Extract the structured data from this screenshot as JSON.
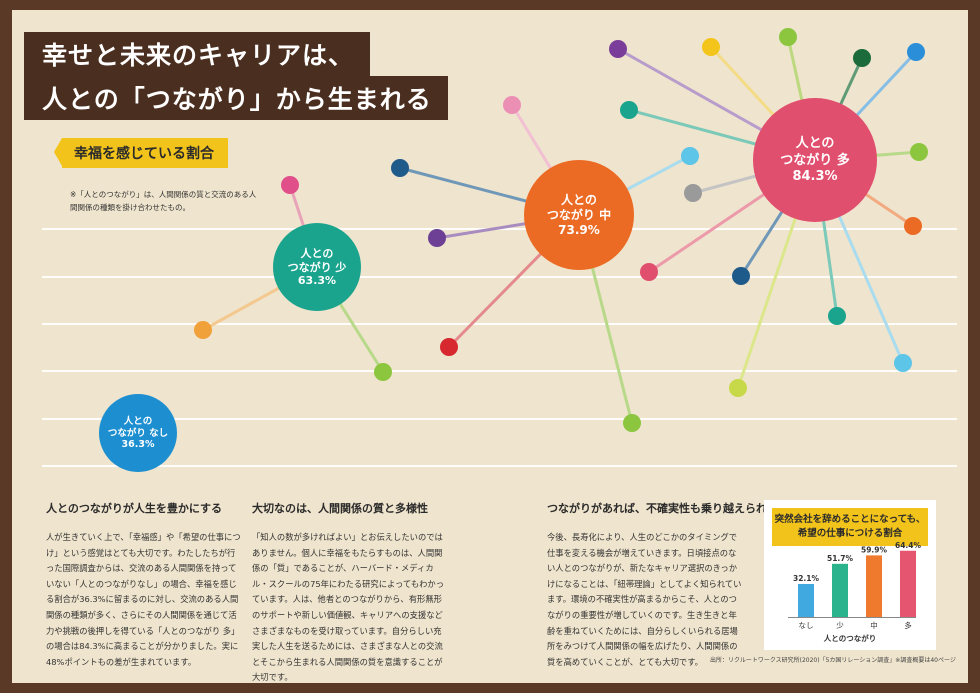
{
  "title": {
    "line1": "幸せと未来のキャリアは、",
    "line2": "人との「つながり」から生まれる"
  },
  "subtitle": "幸福を感じている割合",
  "note": "※「人とのつながり」は、人間関係の質と交流のある人間関係の種類を掛け合わせたもの。",
  "bubbles": [
    {
      "line1": "人との",
      "line2": "つながり なし",
      "pct": "36.3%",
      "color": "#1d8fd1"
    },
    {
      "line1": "人との",
      "line2": "つながり 少",
      "pct": "63.3%",
      "color": "#1aa48d"
    },
    {
      "line1": "人との",
      "line2": "つながり 中",
      "pct": "73.9%",
      "color": "#ec6b24"
    },
    {
      "line1": "人との",
      "line2": "つながり 多",
      "pct": "84.3%",
      "color": "#e14f6e"
    }
  ],
  "sections": [
    {
      "heading": "人とのつながりが人生を豊かにする",
      "body": "人が生きていく上で、「幸福感」や「希望の仕事につけ」という感覚はとても大切です。わたしたちが行った国際調査からは、交流のある人間関係を持っていない「人とのつながりなし」の場合、幸福を感じる割合が36.3%に留まるのに対し、交流のある人間関係の種類が多く、さらにその人間関係を通じて活力や挑戦の後押しを得ている「人とのつながり 多」の場合は84.3%に高まることが分かりました。実に48%ポイントもの差が生まれています。"
    },
    {
      "heading": "大切なのは、人間関係の質と多様性",
      "body": "「知人の数が多ければよい」とお伝えしたいのではありません。個人に幸福をもたらすものは、人間関係の「質」であることが、ハーバード・メディカル・スクールの75年にわたる研究によってもわかっています。人は、他者とのつながりから、有形無形のサポートや新しい価値観、キャリアへの支援などさまざまなものを受け取っています。自分らしい充実した人生を送るためには、さまざまな人との交流とそこから生まれる人間関係の質を意識することが大切です。"
    },
    {
      "heading": "つながりがあれば、不確実性も乗り越えられる",
      "body": "今後、長寿化により、人生のどこかのタイミングで仕事を変える機会が増えていきます。日頃接点のない人とのつながりが、新たなキャリア選択のきっかけになることは、「紐帯理論」としてよく知られています。環境の不確実性が高まるからこそ、人とのつながりの重要性が増していくのです。生き生きと年齢を重ねていくためには、自分らしくいられる居場所をみつけて人間関係の幅を広げたり、人間関係の質を高めていくことが、とても大切です。"
    }
  ],
  "chart_data": {
    "type": "bar",
    "title": "突然会社を辞めることになっても、希望の仕事につける割合",
    "xlabel": "人とのつながり",
    "ylabel": "",
    "categories": [
      "なし",
      "少",
      "中",
      "多"
    ],
    "value_labels": [
      "32.1%",
      "51.7%",
      "59.9%",
      "64.4%"
    ],
    "values": [
      32.1,
      51.7,
      59.9,
      64.4
    ],
    "colors": [
      "#3fa9e0",
      "#2bb38e",
      "#ef7a2e",
      "#e5556f"
    ],
    "ylim": [
      0,
      70
    ],
    "grid": false,
    "legend": "none"
  },
  "footnote": "出所：リクルートワークス研究所(2020)「5カ国リレーション調査」※調査概要は40ページ"
}
